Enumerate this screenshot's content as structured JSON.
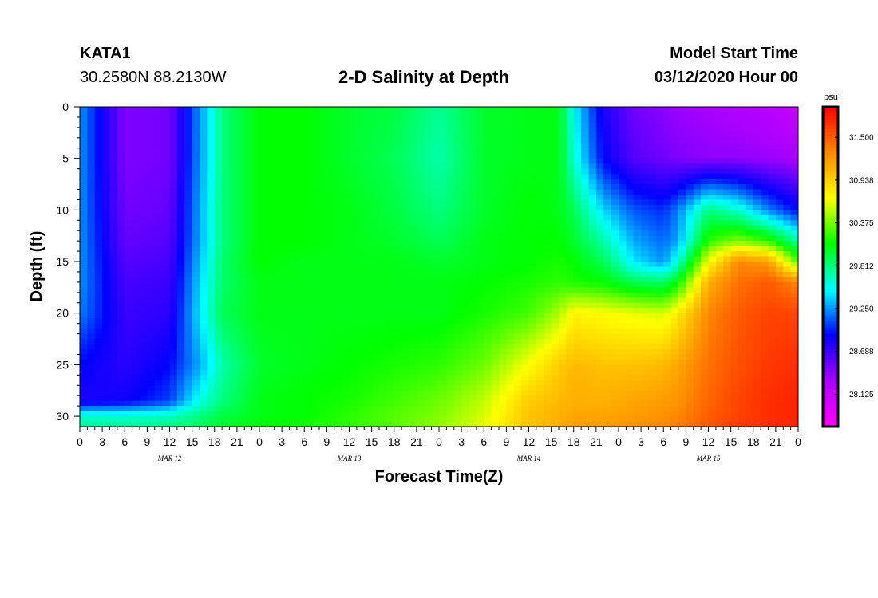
{
  "header": {
    "station": "KATA1",
    "coords": "30.2580N 88.2130W",
    "title": "2-D Salinity at Depth",
    "start_label": "Model Start Time",
    "start_value": "03/12/2020 Hour 00"
  },
  "chart_data": {
    "type": "heatmap",
    "title": "2-D Salinity at Depth",
    "xlabel": "Forecast Time(Z)",
    "ylabel": "Depth (ft)",
    "xlim": [
      0,
      96
    ],
    "ylim": [
      0,
      31
    ],
    "x_tick_labels": [
      "0",
      "3",
      "6",
      "9",
      "12",
      "15",
      "18",
      "21",
      "0",
      "3",
      "6",
      "9",
      "12",
      "15",
      "18",
      "21",
      "0",
      "3",
      "6",
      "9",
      "12",
      "15",
      "18",
      "21",
      "0",
      "3",
      "6",
      "9",
      "12",
      "15",
      "18",
      "21",
      "0"
    ],
    "y_ticks": [
      0,
      5,
      10,
      15,
      20,
      25,
      30
    ],
    "day_labels": [
      {
        "hour": 12,
        "text": "MAR 12"
      },
      {
        "hour": 36,
        "text": "MAR 13"
      },
      {
        "hour": 60,
        "text": "MAR 14"
      },
      {
        "hour": 84,
        "text": "MAR 15"
      }
    ],
    "colorbar": {
      "unit": "psu",
      "min": 27.7,
      "max": 31.9,
      "ticks": [
        "31.500",
        "30.938",
        "30.375",
        "29.812",
        "29.250",
        "28.688",
        "28.125"
      ],
      "colors": [
        "#ff00ff",
        "#aa00ff",
        "#0000ff",
        "#00ffff",
        "#00ff00",
        "#ffff00",
        "#ff8800",
        "#ff0000"
      ]
    },
    "x_hours": [
      0,
      6,
      12,
      16,
      19,
      24,
      30,
      36,
      42,
      48,
      54,
      60,
      64,
      66,
      70,
      74,
      78,
      80,
      84,
      88,
      92,
      96
    ],
    "depths": [
      0,
      5,
      10,
      13,
      15,
      17,
      20,
      25,
      28.5,
      30,
      31
    ],
    "values": [
      [
        29.25,
        28.45,
        28.5,
        29.25,
        29.8,
        30.1,
        30.1,
        30.0,
        29.95,
        29.75,
        30.0,
        30.05,
        30.05,
        29.5,
        28.8,
        28.5,
        28.4,
        28.35,
        28.3,
        28.25,
        28.2,
        28.1
      ],
      [
        29.25,
        28.45,
        28.5,
        29.25,
        29.8,
        30.1,
        30.1,
        30.0,
        29.9,
        29.7,
        30.0,
        30.05,
        30.05,
        29.6,
        28.9,
        28.6,
        28.5,
        28.45,
        28.4,
        28.4,
        28.35,
        28.3
      ],
      [
        29.25,
        28.5,
        28.55,
        29.3,
        29.8,
        30.1,
        30.1,
        30.05,
        29.95,
        29.8,
        30.0,
        30.1,
        30.05,
        29.9,
        29.4,
        29.1,
        29.0,
        29.2,
        29.8,
        29.6,
        29.2,
        28.9
      ],
      [
        29.25,
        28.55,
        28.6,
        29.3,
        29.8,
        30.1,
        30.1,
        30.05,
        30.0,
        29.9,
        30.05,
        30.1,
        30.1,
        30.0,
        29.7,
        29.3,
        29.15,
        29.3,
        30.2,
        30.4,
        30.2,
        29.7
      ],
      [
        29.25,
        28.6,
        28.65,
        29.35,
        29.85,
        30.1,
        30.05,
        30.05,
        30.05,
        30.0,
        30.05,
        30.1,
        30.15,
        30.1,
        29.9,
        29.45,
        29.25,
        29.6,
        30.7,
        31.3,
        31.2,
        30.3
      ],
      [
        29.25,
        28.65,
        28.7,
        29.4,
        29.85,
        30.05,
        30.05,
        30.05,
        30.05,
        30.05,
        30.1,
        30.15,
        30.2,
        30.15,
        30.1,
        29.9,
        29.85,
        30.1,
        31.1,
        31.4,
        31.5,
        31.3
      ],
      [
        29.2,
        28.7,
        28.75,
        29.45,
        29.9,
        30.05,
        30.05,
        30.05,
        30.05,
        30.05,
        30.15,
        30.25,
        30.5,
        30.75,
        30.7,
        30.65,
        30.6,
        30.8,
        31.3,
        31.5,
        31.6,
        31.6
      ],
      [
        28.9,
        28.75,
        28.9,
        29.3,
        29.7,
        30.0,
        30.05,
        30.1,
        30.15,
        30.2,
        30.35,
        30.7,
        30.95,
        31.05,
        31.0,
        31.0,
        31.05,
        31.15,
        31.4,
        31.55,
        31.65,
        31.7
      ],
      [
        28.8,
        28.85,
        29.05,
        29.55,
        29.8,
        30.05,
        30.1,
        30.15,
        30.25,
        30.35,
        30.55,
        30.95,
        31.05,
        31.1,
        31.1,
        31.15,
        31.2,
        31.25,
        31.45,
        31.6,
        31.7,
        31.75
      ],
      [
        29.6,
        29.6,
        29.65,
        29.8,
        29.95,
        30.05,
        30.1,
        30.2,
        30.3,
        30.4,
        30.6,
        31.0,
        31.1,
        31.15,
        31.15,
        31.2,
        31.25,
        31.3,
        31.5,
        31.6,
        31.7,
        31.75
      ],
      [
        29.75,
        29.75,
        29.8,
        29.9,
        30.0,
        30.1,
        30.15,
        30.2,
        30.3,
        30.45,
        30.65,
        31.0,
        31.1,
        31.2,
        31.2,
        31.25,
        31.3,
        31.35,
        31.5,
        31.65,
        31.7,
        31.75
      ]
    ]
  }
}
